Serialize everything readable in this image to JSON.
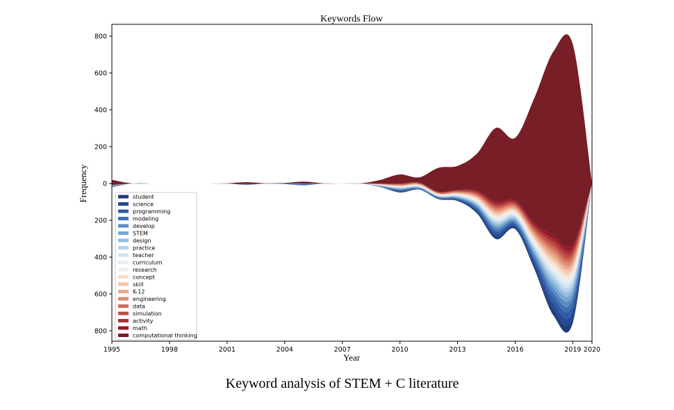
{
  "caption": "Keyword analysis of STEM + C literature",
  "chart_data": {
    "type": "area",
    "subtype": "streamgraph",
    "title": "Keywords Flow",
    "xlabel": "Year",
    "ylabel": "Frequency",
    "xlim": [
      1995,
      2020
    ],
    "ylim": [
      -850,
      850
    ],
    "x_ticks": [
      1995,
      1998,
      2001,
      2004,
      2007,
      2010,
      2013,
      2016,
      2019,
      2020
    ],
    "x_tick_labels": [
      "1995",
      "1998",
      "2001",
      "2004",
      "2007",
      "2010",
      "2013",
      "2016",
      "2019",
      "2020"
    ],
    "y_ticks": [
      800,
      600,
      400,
      200,
      0,
      -200,
      -400,
      -600,
      -800
    ],
    "y_tick_labels": [
      "800",
      "600",
      "400",
      "200",
      "0",
      "200",
      "400",
      "600",
      "800"
    ],
    "legend_position": "lower-left",
    "grid": false,
    "x": [
      1995,
      1996,
      1997,
      1998,
      1999,
      2000,
      2001,
      2002,
      2003,
      2004,
      2005,
      2006,
      2007,
      2008,
      2009,
      2010,
      2011,
      2012,
      2013,
      2014,
      2015,
      2016,
      2017,
      2018,
      2019,
      2020
    ],
    "series": [
      {
        "name": "student",
        "color": "#1f3d7a",
        "values": [
          2,
          0,
          0,
          0,
          0,
          0,
          0,
          2,
          0,
          2,
          2,
          0,
          0,
          0,
          2,
          4,
          2,
          4,
          4,
          10,
          14,
          10,
          20,
          34,
          36,
          0
        ]
      },
      {
        "name": "science",
        "color": "#234b91",
        "values": [
          2,
          0,
          0,
          0,
          0,
          0,
          0,
          2,
          0,
          0,
          2,
          0,
          0,
          0,
          1,
          4,
          2,
          2,
          4,
          8,
          14,
          10,
          18,
          32,
          34,
          0
        ]
      },
      {
        "name": "programming",
        "color": "#2f5ba8",
        "values": [
          2,
          0,
          0,
          0,
          0,
          0,
          0,
          0,
          0,
          2,
          2,
          0,
          0,
          0,
          1,
          4,
          2,
          2,
          4,
          8,
          12,
          8,
          16,
          30,
          32,
          0
        ]
      },
      {
        "name": "modeling",
        "color": "#3e6fb3",
        "values": [
          1,
          0,
          0,
          0,
          0,
          0,
          0,
          0,
          0,
          0,
          2,
          0,
          0,
          0,
          1,
          3,
          2,
          2,
          3,
          6,
          12,
          8,
          14,
          26,
          28,
          0
        ]
      },
      {
        "name": "develop",
        "color": "#5a8cc2",
        "values": [
          1,
          0,
          0,
          0,
          0,
          0,
          0,
          0,
          0,
          0,
          2,
          0,
          0,
          0,
          1,
          3,
          2,
          2,
          3,
          6,
          12,
          8,
          14,
          26,
          26,
          0
        ]
      },
      {
        "name": "STEM",
        "color": "#74a6d2",
        "values": [
          1,
          0,
          0,
          0,
          0,
          0,
          0,
          0,
          0,
          0,
          0,
          0,
          0,
          0,
          1,
          3,
          2,
          2,
          3,
          6,
          10,
          8,
          12,
          24,
          24,
          0
        ]
      },
      {
        "name": "design",
        "color": "#95bedf",
        "values": [
          1,
          0,
          0,
          0,
          0,
          0,
          0,
          0,
          0,
          0,
          0,
          0,
          0,
          0,
          1,
          3,
          2,
          2,
          3,
          6,
          10,
          8,
          12,
          22,
          22,
          0
        ]
      },
      {
        "name": "practice",
        "color": "#b6d3e8",
        "values": [
          1,
          0,
          0,
          0,
          0,
          0,
          0,
          0,
          0,
          0,
          0,
          0,
          0,
          0,
          1,
          2,
          2,
          2,
          3,
          6,
          10,
          8,
          12,
          22,
          20,
          0
        ]
      },
      {
        "name": "teacher",
        "color": "#d2e3ef",
        "values": [
          0,
          0,
          0,
          0,
          0,
          0,
          0,
          0,
          0,
          0,
          0,
          0,
          0,
          0,
          1,
          2,
          2,
          2,
          3,
          6,
          10,
          8,
          12,
          20,
          20,
          0
        ]
      },
      {
        "name": "curriculum",
        "color": "#e6eef4",
        "values": [
          0,
          0,
          0,
          0,
          0,
          0,
          0,
          0,
          0,
          0,
          0,
          0,
          0,
          0,
          1,
          2,
          2,
          2,
          3,
          6,
          10,
          8,
          12,
          20,
          18,
          0
        ]
      },
      {
        "name": "research",
        "color": "#f4ece6",
        "values": [
          0,
          0,
          0,
          0,
          0,
          0,
          0,
          0,
          0,
          0,
          0,
          0,
          0,
          0,
          1,
          2,
          2,
          2,
          3,
          6,
          10,
          8,
          12,
          20,
          18,
          0
        ]
      },
      {
        "name": "concept",
        "color": "#f9dcc8",
        "values": [
          0,
          0,
          0,
          0,
          0,
          0,
          0,
          0,
          0,
          0,
          0,
          0,
          0,
          0,
          1,
          2,
          2,
          2,
          3,
          6,
          10,
          8,
          12,
          20,
          18,
          0
        ]
      },
      {
        "name": "skill",
        "color": "#f3c3a9",
        "values": [
          0,
          0,
          0,
          0,
          0,
          0,
          0,
          0,
          0,
          0,
          0,
          0,
          0,
          0,
          1,
          2,
          2,
          2,
          3,
          6,
          10,
          8,
          12,
          20,
          18,
          0
        ]
      },
      {
        "name": "K-12",
        "color": "#eba78b",
        "values": [
          0,
          0,
          0,
          0,
          0,
          0,
          0,
          0,
          0,
          0,
          0,
          0,
          0,
          0,
          1,
          2,
          2,
          2,
          3,
          6,
          10,
          8,
          12,
          20,
          18,
          0
        ]
      },
      {
        "name": "engineering",
        "color": "#df8a6e",
        "values": [
          0,
          0,
          0,
          0,
          0,
          0,
          0,
          0,
          0,
          0,
          0,
          0,
          0,
          0,
          1,
          2,
          2,
          2,
          3,
          6,
          10,
          8,
          12,
          20,
          18,
          0
        ]
      },
      {
        "name": "data",
        "color": "#d06b56",
        "values": [
          0,
          0,
          0,
          0,
          0,
          0,
          0,
          0,
          0,
          0,
          0,
          0,
          0,
          0,
          1,
          2,
          2,
          2,
          3,
          6,
          10,
          8,
          12,
          20,
          18,
          0
        ]
      },
      {
        "name": "simulation",
        "color": "#c04b43",
        "values": [
          0,
          0,
          0,
          0,
          0,
          0,
          0,
          0,
          0,
          0,
          0,
          0,
          0,
          0,
          1,
          2,
          2,
          2,
          3,
          6,
          10,
          8,
          12,
          20,
          18,
          0
        ]
      },
      {
        "name": "activity",
        "color": "#ab2f35",
        "values": [
          0,
          0,
          0,
          0,
          0,
          0,
          0,
          0,
          0,
          0,
          0,
          0,
          0,
          0,
          1,
          2,
          2,
          2,
          3,
          6,
          10,
          8,
          12,
          20,
          18,
          0
        ]
      },
      {
        "name": "math",
        "color": "#94192b",
        "values": [
          0,
          0,
          0,
          0,
          0,
          0,
          0,
          0,
          0,
          0,
          0,
          0,
          0,
          0,
          1,
          2,
          2,
          2,
          3,
          6,
          10,
          8,
          12,
          20,
          18,
          0
        ]
      },
      {
        "name": "computational thinking",
        "color": "#771e26",
        "values": [
          28,
          2,
          0,
          0,
          0,
          0,
          2,
          10,
          2,
          2,
          10,
          2,
          0,
          2,
          20,
          50,
          28,
          130,
          130,
          200,
          400,
          340,
          680,
          1000,
          1090,
          0
        ]
      }
    ]
  }
}
